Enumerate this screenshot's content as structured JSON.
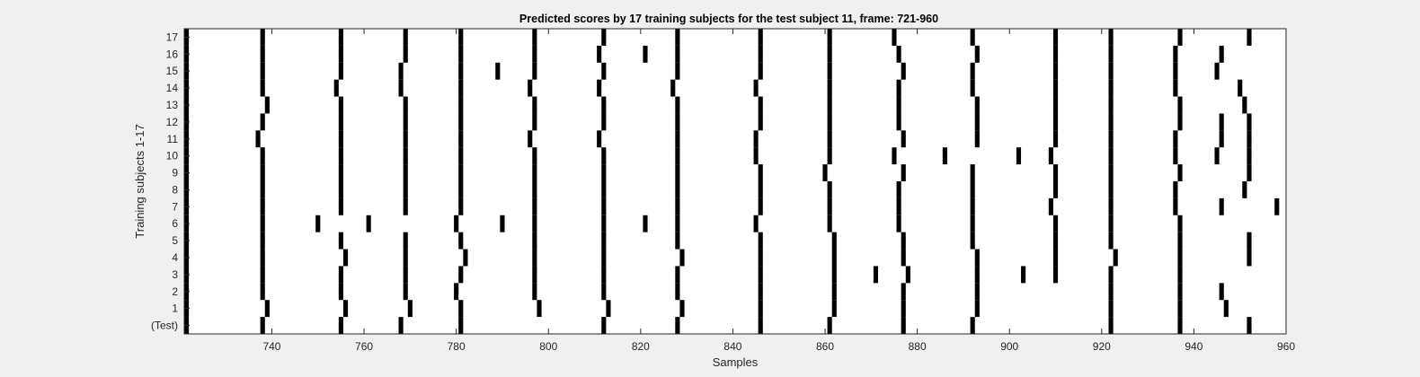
{
  "chart_data": {
    "type": "raster",
    "title": "Predicted scores by 17 training subjects for the test subject 11, frame: 721-960",
    "xlabel": "Samples",
    "ylabel": "Training subjects 1-17",
    "xlim": [
      721,
      960
    ],
    "x_ticks": [
      740,
      760,
      780,
      800,
      820,
      840,
      860,
      880,
      900,
      920,
      940,
      960
    ],
    "y_tick_labels": [
      "(Test)",
      "1",
      "2",
      "3",
      "4",
      "5",
      "6",
      "7",
      "8",
      "9",
      "10",
      "11",
      "12",
      "13",
      "14",
      "15",
      "16",
      "17"
    ],
    "colors": {
      "background": "#f0f0f0",
      "plot_area": "#ffffff",
      "mark": "#000000",
      "axis": "#262626"
    },
    "rows": [
      {
        "label": "(Test)",
        "x": [
          721,
          738,
          755,
          768,
          781,
          812,
          828,
          846,
          861,
          877,
          892,
          922,
          937,
          952
        ]
      },
      {
        "label": "1",
        "x": [
          721,
          739,
          756,
          770,
          781,
          798,
          813,
          829,
          846,
          862,
          877,
          893,
          922,
          937,
          947
        ]
      },
      {
        "label": "2",
        "x": [
          721,
          738,
          755,
          769,
          780,
          797,
          812,
          828,
          846,
          862,
          877,
          893,
          922,
          937,
          946
        ]
      },
      {
        "label": "3",
        "x": [
          721,
          738,
          755,
          769,
          781,
          797,
          812,
          828,
          846,
          862,
          871,
          878,
          893,
          903,
          910,
          922,
          937
        ]
      },
      {
        "label": "4",
        "x": [
          721,
          738,
          756,
          769,
          782,
          797,
          812,
          829,
          846,
          862,
          877,
          893,
          910,
          923,
          937,
          952
        ]
      },
      {
        "label": "5",
        "x": [
          721,
          738,
          755,
          769,
          781,
          797,
          812,
          828,
          846,
          862,
          877,
          892,
          910,
          922,
          937,
          952
        ]
      },
      {
        "label": "6",
        "x": [
          721,
          738,
          750,
          761,
          780,
          790,
          797,
          812,
          821,
          828,
          845,
          861,
          876,
          892,
          910,
          922,
          937
        ]
      },
      {
        "label": "7",
        "x": [
          721,
          738,
          755,
          769,
          781,
          797,
          812,
          828,
          846,
          861,
          876,
          892,
          909,
          922,
          936,
          946,
          958
        ]
      },
      {
        "label": "8",
        "x": [
          721,
          738,
          755,
          769,
          781,
          797,
          812,
          828,
          846,
          861,
          876,
          892,
          910,
          922,
          936,
          951
        ]
      },
      {
        "label": "9",
        "x": [
          721,
          738,
          755,
          769,
          781,
          797,
          812,
          828,
          846,
          860,
          877,
          892,
          910,
          922,
          937,
          952
        ]
      },
      {
        "label": "10",
        "x": [
          721,
          738,
          755,
          769,
          781,
          797,
          812,
          828,
          845,
          861,
          875,
          886,
          902,
          909,
          922,
          936,
          945,
          952
        ]
      },
      {
        "label": "11",
        "x": [
          721,
          737,
          755,
          769,
          781,
          796,
          811,
          828,
          845,
          861,
          877,
          893,
          910,
          922,
          936,
          946,
          952
        ]
      },
      {
        "label": "12",
        "x": [
          721,
          738,
          755,
          769,
          781,
          797,
          812,
          828,
          846,
          861,
          876,
          893,
          910,
          922,
          937,
          946,
          952
        ]
      },
      {
        "label": "13",
        "x": [
          721,
          739,
          755,
          769,
          781,
          797,
          812,
          828,
          846,
          861,
          876,
          893,
          910,
          922,
          937,
          951
        ]
      },
      {
        "label": "14",
        "x": [
          720,
          738,
          754,
          768,
          781,
          796,
          811,
          827,
          845,
          861,
          876,
          892,
          910,
          922,
          936,
          950
        ]
      },
      {
        "label": "15",
        "x": [
          721,
          738,
          755,
          768,
          781,
          789,
          797,
          812,
          828,
          846,
          861,
          877,
          892,
          910,
          922,
          936,
          945
        ]
      },
      {
        "label": "16",
        "x": [
          721,
          738,
          755,
          769,
          781,
          797,
          811,
          821,
          828,
          846,
          861,
          876,
          893,
          910,
          922,
          936,
          946
        ]
      },
      {
        "label": "17",
        "x": [
          721,
          738,
          755,
          769,
          781,
          797,
          812,
          828,
          846,
          861,
          875,
          892,
          910,
          922,
          937,
          952
        ]
      }
    ]
  }
}
